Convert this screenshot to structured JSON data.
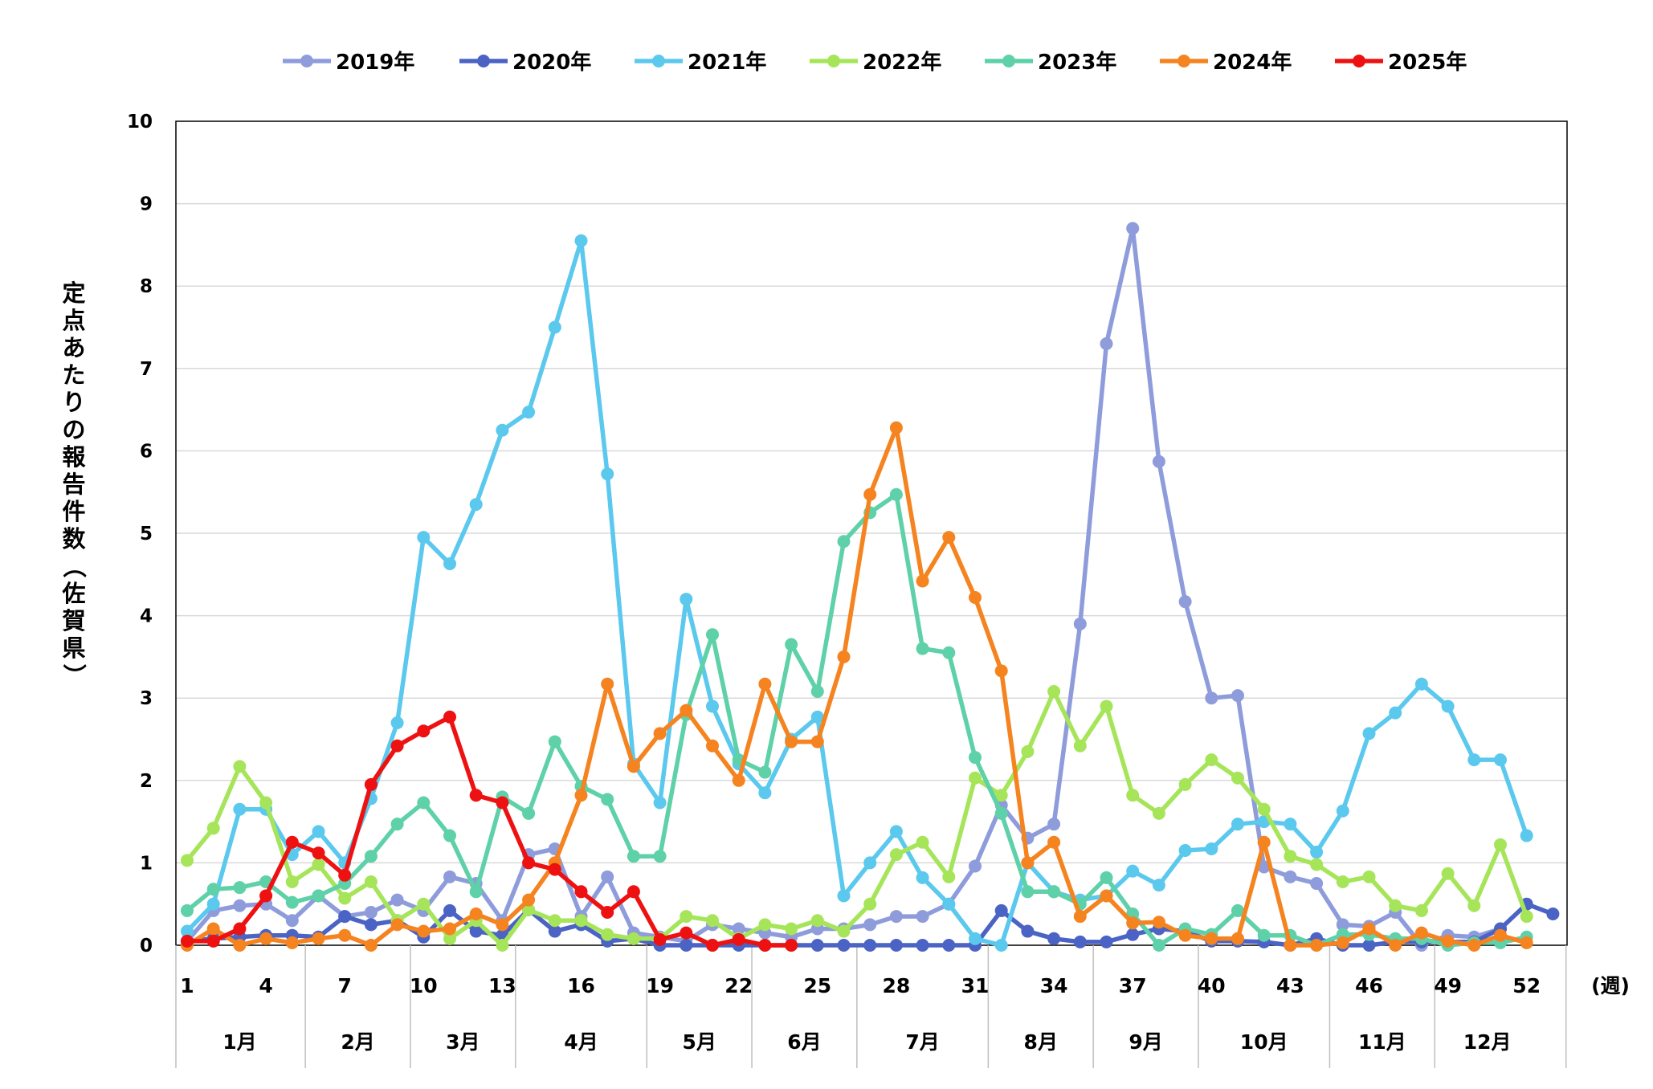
{
  "chart_data": {
    "type": "line",
    "xlabel": "(週)",
    "ylabel": "定点あたりの報告件数（佐賀県）",
    "ylim": [
      0,
      10
    ],
    "yticks": [
      0,
      1,
      2,
      3,
      4,
      5,
      6,
      7,
      8,
      9,
      10
    ],
    "xlim": [
      1,
      53
    ],
    "xtick_weeks": [
      1,
      4,
      7,
      10,
      13,
      16,
      19,
      22,
      25,
      28,
      31,
      34,
      37,
      40,
      43,
      46,
      49,
      52
    ],
    "month_labels": [
      "1月",
      "2月",
      "3月",
      "4月",
      "5月",
      "6月",
      "7月",
      "8月",
      "9月",
      "10月",
      "11月",
      "12月"
    ],
    "month_start_weeks": [
      1,
      6,
      10,
      14,
      19,
      23,
      27,
      32,
      36,
      40,
      45,
      49
    ],
    "grid": "horizontal",
    "legend_position": "top",
    "series": [
      {
        "name": "2019年",
        "color": "#8E9CDB",
        "values": [
          0.05,
          0.42,
          0.48,
          0.5,
          0.3,
          0.6,
          0.35,
          0.4,
          0.55,
          0.42,
          0.83,
          0.75,
          0.3,
          1.1,
          1.17,
          0.35,
          0.83,
          0.15,
          0.1,
          0.05,
          0.25,
          0.2,
          0.15,
          0.1,
          0.2,
          0.2,
          0.25,
          0.35,
          0.35,
          0.5,
          0.96,
          1.7,
          1.3,
          1.47,
          3.9,
          7.3,
          8.7,
          5.87,
          4.17,
          3.0,
          3.03,
          0.95,
          0.83,
          0.75,
          0.25,
          0.23,
          0.4,
          0.0,
          0.12,
          0.1,
          0.2
        ]
      },
      {
        "name": "2020年",
        "color": "#4A63C4",
        "values": [
          0.05,
          0.08,
          0.1,
          0.12,
          0.12,
          0.1,
          0.35,
          0.25,
          0.3,
          0.1,
          0.42,
          0.17,
          0.12,
          0.43,
          0.17,
          0.25,
          0.05,
          0.08,
          0.0,
          0.0,
          0.0,
          0.0,
          0.0,
          0.0,
          0.0,
          0.0,
          0.0,
          0.0,
          0.0,
          0.0,
          0.0,
          0.42,
          0.17,
          0.08,
          0.04,
          0.04,
          0.13,
          0.2,
          0.17,
          0.05,
          0.05,
          0.04,
          0.0,
          0.08,
          0.0,
          0.0,
          0.04,
          0.04,
          0.04,
          0.04,
          0.2,
          0.5,
          0.38
        ]
      },
      {
        "name": "2021年",
        "color": "#5BC8EE",
        "values": [
          0.17,
          0.5,
          1.65,
          1.65,
          1.1,
          1.38,
          1.0,
          1.78,
          2.7,
          4.95,
          4.63,
          5.35,
          6.25,
          6.47,
          7.5,
          8.55,
          5.72,
          2.2,
          1.73,
          4.2,
          2.9,
          2.2,
          1.85,
          2.5,
          2.77,
          0.6,
          1.0,
          1.38,
          0.82,
          0.5,
          0.08,
          0.0,
          1.0,
          0.65,
          0.55,
          0.6,
          0.9,
          0.73,
          1.15,
          1.17,
          1.47,
          1.5,
          1.47,
          1.13,
          1.63,
          2.57,
          2.82,
          3.17,
          2.9,
          2.25,
          2.25,
          1.33
        ]
      },
      {
        "name": "2022年",
        "color": "#A6E55A",
        "values": [
          1.03,
          1.42,
          2.17,
          1.73,
          0.77,
          0.98,
          0.57,
          0.77,
          0.3,
          0.5,
          0.08,
          0.3,
          0.0,
          0.43,
          0.3,
          0.3,
          0.13,
          0.08,
          0.08,
          0.35,
          0.3,
          0.08,
          0.25,
          0.2,
          0.3,
          0.17,
          0.5,
          1.1,
          1.25,
          0.83,
          2.03,
          1.82,
          2.35,
          3.08,
          2.42,
          2.9,
          1.82,
          1.6,
          1.95,
          2.25,
          2.03,
          1.65,
          1.08,
          0.98,
          0.77,
          0.83,
          0.48,
          0.42,
          0.87,
          0.48,
          1.22,
          0.35
        ]
      },
      {
        "name": "2023年",
        "color": "#5ED1A8",
        "values": [
          0.42,
          0.68,
          0.7,
          0.77,
          0.52,
          0.6,
          0.75,
          1.08,
          1.47,
          1.73,
          1.33,
          0.65,
          1.8,
          1.6,
          2.47,
          1.93,
          1.77,
          1.08,
          1.08,
          2.8,
          3.77,
          2.25,
          2.1,
          3.65,
          3.08,
          4.9,
          5.25,
          5.47,
          3.6,
          3.55,
          2.28,
          1.6,
          0.65,
          0.65,
          0.5,
          0.82,
          0.38,
          0.0,
          0.2,
          0.13,
          0.42,
          0.12,
          0.12,
          0.0,
          0.13,
          0.13,
          0.08,
          0.08,
          0.0,
          0.03,
          0.03,
          0.1
        ]
      },
      {
        "name": "2024年",
        "color": "#F5831F",
        "values": [
          0.0,
          0.2,
          0.0,
          0.08,
          0.03,
          0.08,
          0.12,
          0.0,
          0.25,
          0.17,
          0.2,
          0.38,
          0.25,
          0.55,
          1.0,
          1.82,
          3.17,
          2.17,
          2.57,
          2.85,
          2.42,
          2.0,
          3.17,
          2.47,
          2.47,
          3.5,
          5.47,
          6.28,
          4.42,
          4.95,
          4.22,
          3.33,
          1.0,
          1.25,
          0.35,
          0.6,
          0.27,
          0.28,
          0.12,
          0.08,
          0.08,
          1.25,
          0.0,
          0.0,
          0.03,
          0.2,
          0.0,
          0.15,
          0.05,
          0.0,
          0.12,
          0.03
        ]
      },
      {
        "name": "2025年",
        "color": "#EE1111",
        "values": [
          0.05,
          0.05,
          0.2,
          0.6,
          1.25,
          1.12,
          0.85,
          1.95,
          2.42,
          2.6,
          2.77,
          1.82,
          1.73,
          1.0,
          0.92,
          0.65,
          0.4,
          0.65,
          0.07,
          0.15,
          0.0,
          0.07,
          0.0,
          0.0
        ]
      }
    ]
  }
}
